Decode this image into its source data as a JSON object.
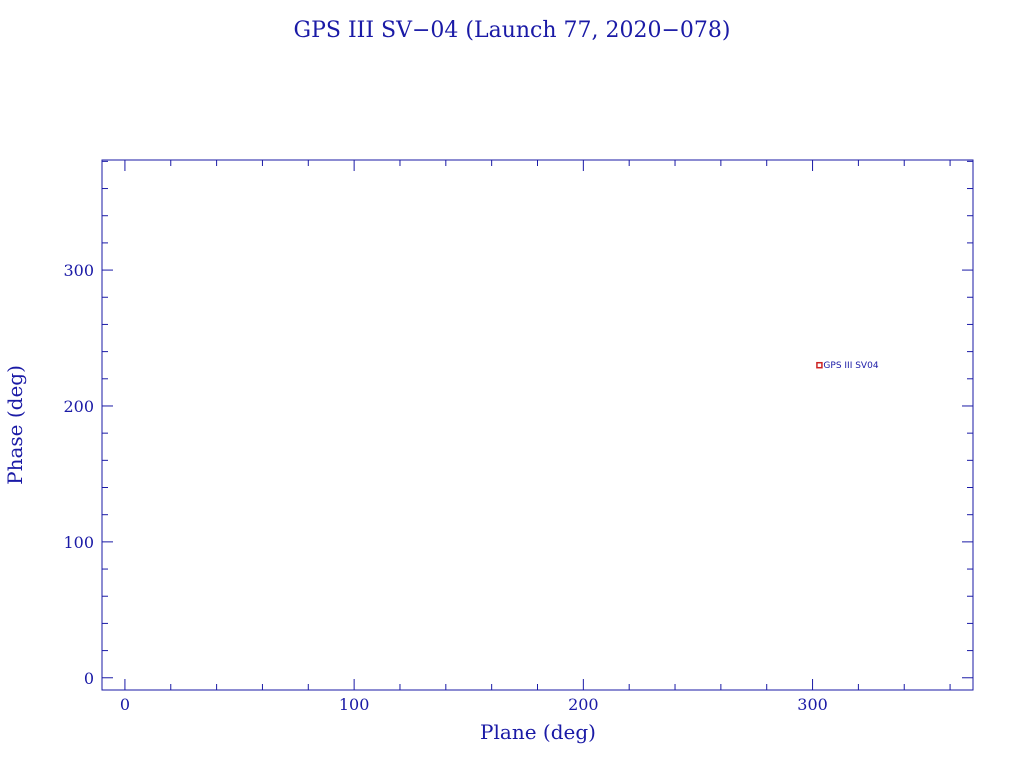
{
  "chart_data": {
    "type": "scatter",
    "title": "GPS III SV−04 (Launch 77, 2020−078)",
    "xlabel": "Plane (deg)",
    "ylabel": "Phase (deg)",
    "xlim": [
      -10,
      370
    ],
    "ylim": [
      -9,
      381
    ],
    "xticks": [
      0,
      100,
      200,
      300
    ],
    "yticks": [
      0,
      100,
      200,
      300
    ],
    "x_minor_step": 20,
    "y_minor_step": 20,
    "grid": false,
    "points": [
      {
        "x": 303,
        "y": 230,
        "label": "GPS III SV04",
        "color": "#cc2222"
      }
    ],
    "colors": {
      "axis": "#1a1aa6",
      "text": "#1a1aa6",
      "marker": "#cc2222"
    }
  }
}
